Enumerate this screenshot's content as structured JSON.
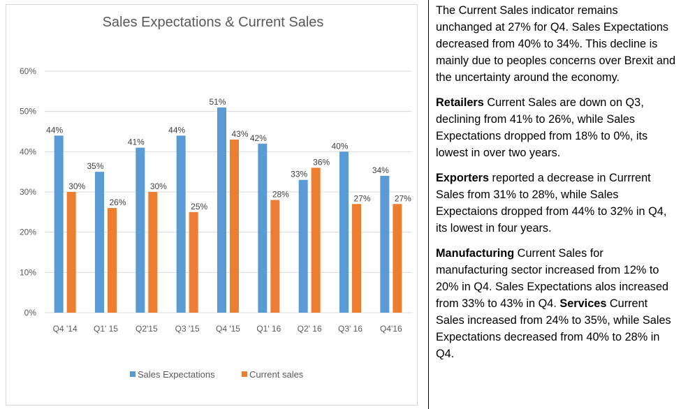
{
  "chart_data": {
    "type": "bar",
    "title": "Sales Expectations & Current Sales",
    "categories": [
      "Q4 '14",
      "Q1' 15",
      "Q2'15",
      "Q3 '15",
      "Q4 '15",
      "Q1' 16",
      "Q2' 16",
      "Q3' 16",
      "Q4'16"
    ],
    "series": [
      {
        "name": "Sales Expectations",
        "color": "#5B9BD5",
        "values": [
          44,
          35,
          41,
          44,
          51,
          42,
          33,
          40,
          34
        ],
        "labels": [
          "44%",
          "35%",
          "41%",
          "44%",
          "51%",
          "42%",
          "33%",
          "40%",
          "34%"
        ]
      },
      {
        "name": "Current sales",
        "color": "#ED7D31",
        "values": [
          30,
          26,
          30,
          25,
          43,
          28,
          36,
          27,
          27
        ],
        "labels": [
          "30%",
          "26%",
          "30%",
          "25%",
          "43%",
          "28%",
          "36%",
          "27%",
          "27%"
        ]
      }
    ],
    "yticks": [
      "0%",
      "10%",
      "20%",
      "30%",
      "40%",
      "50%",
      "60%"
    ],
    "ylim": [
      0,
      60
    ],
    "grid": true,
    "legend": "bottom"
  },
  "commentary": {
    "intro": "The Current Sales indicator remains unchanged at 27% for Q4. Sales Expectations decreased from 40% to 34%. This decline is mainly due to peoples concerns over Brexit and the uncertainty around the economy.",
    "retailers_heading": "Retailers",
    "retailers_text": " Current Sales are down on Q3, declining from 41% to 26%, while Sales Expectations dropped from 18% to 0%, its lowest in over two years.",
    "exporters_heading": "Exporters",
    "exporters_text": " reported a decrease in Currrent Sales from 31% to 28%, while Sales Expectaions dropped from 44% to 32% in Q4, its lowest in four years.",
    "manufacturing_heading": "Manufacturing",
    "manufacturing_text": " Current Sales for manufacturing sector increased from 12% to 20% in Q4. Sales Expectations alos increased from 33% to 43% in Q4. ",
    "services_heading": "Services",
    "services_text": " Current Sales increased from 24% to 35%, while Sales Expectations decreased from 40% to 28% in Q4."
  }
}
